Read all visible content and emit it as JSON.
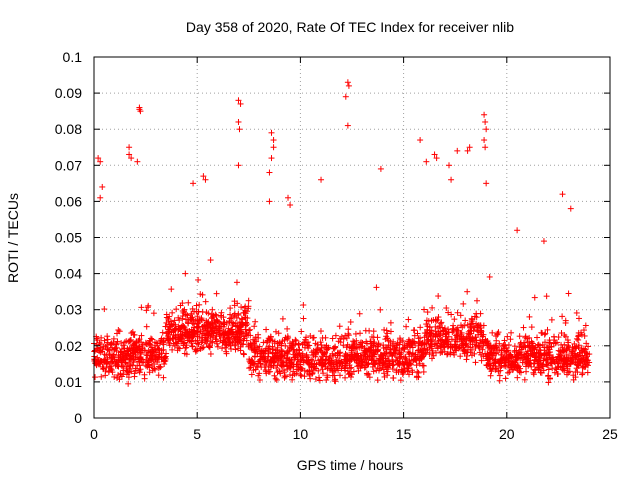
{
  "chart_data": {
    "type": "scatter",
    "title": "Day 358 of 2020, Rate Of TEC Index for receiver nlib",
    "xlabel": "GPS time / hours",
    "ylabel": "ROTI / TECUs",
    "xlim": [
      0,
      25
    ],
    "ylim": [
      0,
      0.1
    ],
    "x_ticks": [
      "0",
      "5",
      "10",
      "15",
      "20",
      "25"
    ],
    "y_ticks": [
      "0",
      "0.01",
      "0.02",
      "0.03",
      "0.04",
      "0.05",
      "0.06",
      "0.07",
      "0.08",
      "0.09",
      "0.1"
    ],
    "grid": true,
    "marker": "plus",
    "marker_color": "#ff0000",
    "series": [
      {
        "points": [
          [
            0.2,
            0.072
          ],
          [
            0.3,
            0.071
          ],
          [
            0.4,
            0.064
          ],
          [
            0.3,
            0.061
          ],
          [
            1.7,
            0.075
          ],
          [
            1.7,
            0.073
          ],
          [
            1.8,
            0.072
          ],
          [
            2.1,
            0.071
          ],
          [
            2.2,
            0.086
          ],
          [
            2.25,
            0.085
          ],
          [
            2.2,
            0.0855
          ],
          [
            5.3,
            0.067
          ],
          [
            5.4,
            0.066
          ],
          [
            4.8,
            0.065
          ],
          [
            7.0,
            0.088
          ],
          [
            7.1,
            0.087
          ],
          [
            7.0,
            0.082
          ],
          [
            7.05,
            0.08
          ],
          [
            7.0,
            0.07
          ],
          [
            8.6,
            0.079
          ],
          [
            8.7,
            0.077
          ],
          [
            8.7,
            0.075
          ],
          [
            8.6,
            0.072
          ],
          [
            8.5,
            0.068
          ],
          [
            9.4,
            0.061
          ],
          [
            9.5,
            0.059
          ],
          [
            8.5,
            0.06
          ],
          [
            11.0,
            0.066
          ],
          [
            12.2,
            0.089
          ],
          [
            12.3,
            0.093
          ],
          [
            12.35,
            0.092
          ],
          [
            12.3,
            0.081
          ],
          [
            13.9,
            0.069
          ],
          [
            15.8,
            0.077
          ],
          [
            16.1,
            0.071
          ],
          [
            16.5,
            0.073
          ],
          [
            16.6,
            0.072
          ],
          [
            17.2,
            0.07
          ],
          [
            17.3,
            0.066
          ],
          [
            17.6,
            0.074
          ],
          [
            18.1,
            0.074
          ],
          [
            18.2,
            0.075
          ],
          [
            18.9,
            0.084
          ],
          [
            18.95,
            0.082
          ],
          [
            19.0,
            0.08
          ],
          [
            18.9,
            0.077
          ],
          [
            18.95,
            0.075
          ],
          [
            19.0,
            0.065
          ],
          [
            20.5,
            0.052
          ],
          [
            21.8,
            0.049
          ],
          [
            22.7,
            0.062
          ],
          [
            23.1,
            0.058
          ]
        ]
      }
    ]
  }
}
